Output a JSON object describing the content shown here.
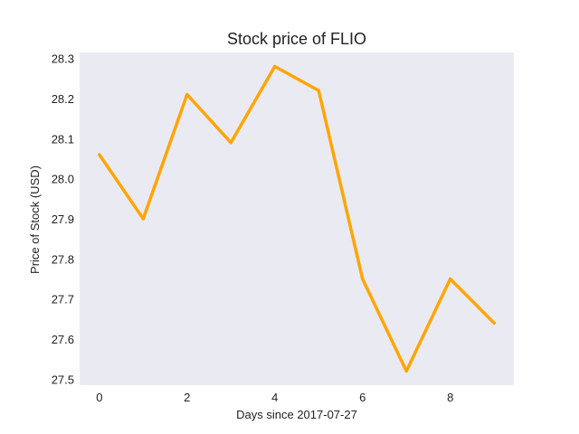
{
  "chart_data": {
    "type": "line",
    "title": "Stock price of FLIO",
    "xlabel": "Days since 2017-07-27",
    "ylabel": "Price of Stock (USD)",
    "x": [
      0,
      1,
      2,
      3,
      4,
      5,
      6,
      7,
      8,
      9
    ],
    "series": [
      {
        "values": [
          28.06,
          27.9,
          28.21,
          28.09,
          28.28,
          28.22,
          27.75,
          27.52,
          27.75,
          27.64
        ],
        "color": "#ffa500"
      }
    ],
    "xlim": [
      -0.45,
      9.45
    ],
    "ylim": [
      27.485,
      28.315
    ],
    "xticks": [
      0,
      2,
      4,
      6,
      8
    ],
    "xtick_labels": [
      "0",
      "2",
      "4",
      "6",
      "8"
    ],
    "yticks": [
      27.5,
      27.6,
      27.7,
      27.8,
      27.9,
      28.0,
      28.1,
      28.2,
      28.3
    ],
    "ytick_labels": [
      "27.5",
      "27.6",
      "27.7",
      "27.8",
      "27.9",
      "28.0",
      "28.1",
      "28.2",
      "28.3"
    ],
    "grid": false,
    "background": "#eaeaf2"
  }
}
